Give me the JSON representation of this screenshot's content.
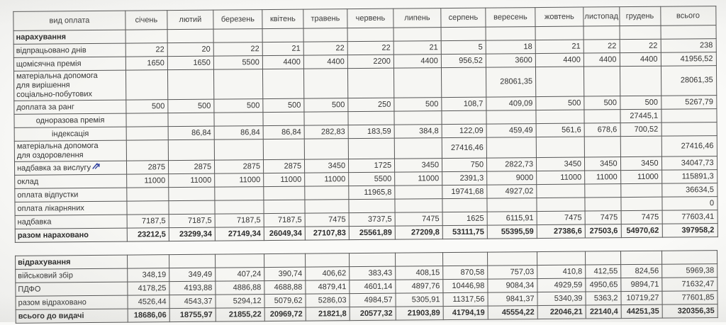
{
  "columns": [
    "вид оплата",
    "січень",
    "лютий",
    "березень",
    "квітень",
    "травень",
    "червень",
    "липень",
    "серпень",
    "вересень",
    "жовтень",
    "листопад",
    "грудень",
    "всього"
  ],
  "accruals_table": {
    "rows": [
      {
        "label": "нарахування",
        "bold": true,
        "values": [
          "",
          "",
          "",
          "",
          "",
          "",
          "",
          "",
          "",
          "",
          "",
          "",
          ""
        ]
      },
      {
        "label": "відпрацьовано днів",
        "values": [
          "22",
          "20",
          "22",
          "21",
          "22",
          "22",
          "21",
          "5",
          "18",
          "21",
          "22",
          "22",
          "238"
        ]
      },
      {
        "label": "щомісячна премія",
        "values": [
          "1650",
          "1650",
          "5500",
          "4400",
          "4400",
          "2200",
          "4400",
          "956,52",
          "3600",
          "4400",
          "4400",
          "4400",
          "41956,52"
        ]
      },
      {
        "label": "матеріальна допомога\nдля вирішення\nсоціально-побутових",
        "values": [
          "",
          "",
          "",
          "",
          "",
          "",
          "",
          "",
          "28061,35",
          "",
          "",
          "",
          "28061,35"
        ]
      },
      {
        "label": "доплата за ранг",
        "values": [
          "500",
          "500",
          "500",
          "500",
          "500",
          "250",
          "500",
          "108,7",
          "409,09",
          "500",
          "500",
          "500",
          "5267,79"
        ]
      },
      {
        "label": "одноразова премія",
        "indent": true,
        "values": [
          "",
          "",
          "",
          "",
          "",
          "",
          "",
          "",
          "",
          "",
          "",
          "27445,1",
          ""
        ]
      },
      {
        "label": "індексація",
        "indent": true,
        "values": [
          "",
          "86,84",
          "86,84",
          "86,84",
          "282,83",
          "183,59",
          "384,8",
          "122,09",
          "459,49",
          "561,6",
          "678,6",
          "700,52",
          ""
        ]
      },
      {
        "label": "матеріальна допомога\nдля оздоровлення",
        "values": [
          "",
          "",
          "",
          "",
          "",
          "",
          "",
          "27416,46",
          "",
          "",
          "",
          "",
          "27416,46"
        ]
      },
      {
        "label": "надбавка за вислугу",
        "penMark": true,
        "values": [
          "2875",
          "2875",
          "2875",
          "2875",
          "3450",
          "1725",
          "3450",
          "750",
          "2822,73",
          "3450",
          "3450",
          "3450",
          "34047,73"
        ]
      },
      {
        "label": "оклад",
        "values": [
          "11000",
          "11000",
          "11000",
          "11000",
          "11000",
          "5500",
          "11000",
          "2391,3",
          "9000",
          "11000",
          "11000",
          "11000",
          "115891,3"
        ]
      },
      {
        "label": "оплата відпустки",
        "values": [
          "",
          "",
          "",
          "",
          "",
          "11965,8",
          "",
          "19741,68",
          "4927,02",
          "",
          "",
          "",
          "36634,5"
        ]
      },
      {
        "label": "оплата лікарняних",
        "values": [
          "",
          "",
          "",
          "",
          "",
          "",
          "",
          "",
          "",
          "",
          "",
          "",
          "0"
        ]
      },
      {
        "label": "надбавка",
        "values": [
          "7187,5",
          "7187,5",
          "7187,5",
          "7187,5",
          "7475",
          "3737,5",
          "7475",
          "1625",
          "6115,91",
          "7475",
          "7475",
          "7475",
          "77603,41"
        ]
      },
      {
        "label": "разом нараховано",
        "bold": true,
        "values": [
          "23212,5",
          "23299,34",
          "27149,34",
          "26049,34",
          "27107,83",
          "25561,89",
          "27209,8",
          "53111,75",
          "55395,59",
          "27386,6",
          "27503,6",
          "54970,62",
          "397958,2"
        ]
      }
    ]
  },
  "deductions_table": {
    "rows": [
      {
        "label": "відрахування",
        "bold": true,
        "values": [
          "",
          "",
          "",
          "",
          "",
          "",
          "",
          "",
          "",
          "",
          "",
          "",
          ""
        ]
      },
      {
        "label": "військовий збір",
        "values": [
          "348,19",
          "349,49",
          "407,24",
          "390,74",
          "406,62",
          "383,43",
          "408,15",
          "870,58",
          "757,03",
          "410,8",
          "412,55",
          "824,56",
          "5969,38"
        ]
      },
      {
        "label": "ПДФО",
        "values": [
          "4178,25",
          "4193,88",
          "4886,88",
          "4688,88",
          "4879,41",
          "4601,14",
          "4897,76",
          "10446,98",
          "9084,34",
          "4929,59",
          "4950,65",
          "9894,71",
          "71632,47"
        ]
      },
      {
        "label": "разом відраховано",
        "values": [
          "4526,44",
          "4543,37",
          "5294,12",
          "5079,62",
          "5286,03",
          "4984,57",
          "5305,91",
          "11317,56",
          "9841,37",
          "5340,39",
          "5363,2",
          "10719,27",
          "77601,85"
        ]
      },
      {
        "label": "всього до видачі",
        "bold": true,
        "values": [
          "18686,06",
          "18755,97",
          "21855,22",
          "20969,72",
          "21821,8",
          "20577,32",
          "21903,89",
          "41794,19",
          "45554,22",
          "22046,21",
          "22140,4",
          "44251,35",
          "320356,35"
        ]
      }
    ]
  },
  "colors": {
    "pen_mark": "#2e3f9e",
    "grid_line": "#565656",
    "paper": "#fafaf8"
  }
}
